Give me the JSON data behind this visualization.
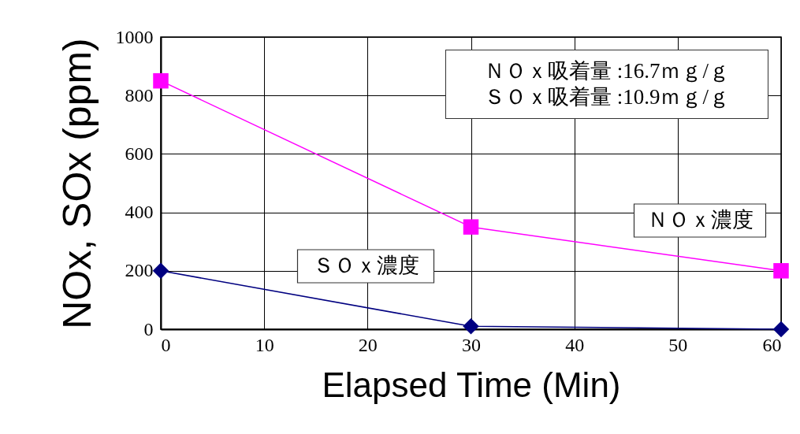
{
  "chart_data": {
    "type": "line",
    "xlabel": "Elapsed Time (Min)",
    "ylabel": "NOx, SOx (ppm)",
    "x": [
      0,
      30,
      60
    ],
    "series": [
      {
        "name": "ＮＯｘ濃度",
        "color": "#ff00ff",
        "marker": "square",
        "values": [
          850,
          350,
          200
        ]
      },
      {
        "name": "ＳＯｘ濃度",
        "color": "#000080",
        "marker": "diamond",
        "values": [
          200,
          10,
          0
        ]
      }
    ],
    "annotations": [
      "ＮＯｘ吸着量 :16.7ｍｇ/ｇ",
      "ＳＯｘ吸着量 :10.9ｍｇ/ｇ"
    ],
    "xlim": [
      0,
      60
    ],
    "xticks": [
      0,
      10,
      20,
      30,
      40,
      50,
      60
    ],
    "ylim": [
      0,
      1000
    ],
    "yticks": [
      0,
      200,
      400,
      600,
      800,
      1000
    ],
    "grid": true
  }
}
